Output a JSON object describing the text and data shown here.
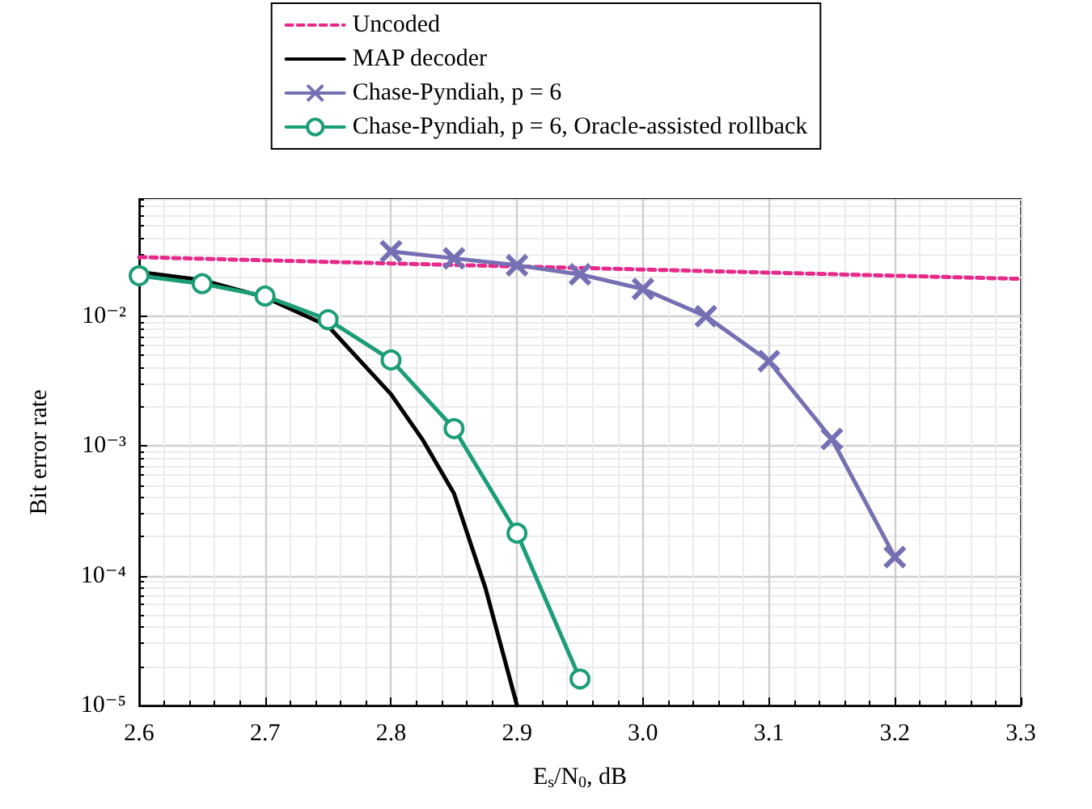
{
  "chart_data": {
    "type": "line",
    "xlabel": "E$_{s}$/N$_{0}$, dB",
    "ylabel": "Bit error rate",
    "log": "y",
    "grid": true,
    "legend": "top",
    "line_style": "solid",
    "xlim": [
      2.6,
      3.3
    ],
    "xticks": [
      {
        "value": 2.6,
        "label": "2.6"
      },
      {
        "value": 2.7,
        "label": "2.7"
      },
      {
        "value": 2.8,
        "label": "2.8"
      },
      {
        "value": 2.9,
        "label": "2.9"
      },
      {
        "value": 3.0,
        "label": "3.0"
      },
      {
        "value": 3.1,
        "label": "3.1"
      },
      {
        "value": 3.2,
        "label": "3.2"
      },
      {
        "value": 3.3,
        "label": "3.3"
      }
    ],
    "ylim": [
      1e-05,
      0.08
    ],
    "yticks": [
      {
        "value": 1e-05,
        "label": "10⁻⁵"
      },
      {
        "value": 0.0001,
        "label": "10⁻⁴"
      },
      {
        "value": 0.001,
        "label": "10⁻³"
      },
      {
        "value": 0.01,
        "label": "10⁻²"
      }
    ],
    "series": [
      {
        "name": "Uncoded",
        "color": "#e7298a",
        "line_style": "dashed",
        "marker": "none",
        "x": [
          2.6,
          2.8,
          3.0,
          3.2,
          3.3
        ],
        "values": [
          0.0285,
          0.0255,
          0.0229,
          0.0205,
          0.0194
        ]
      },
      {
        "name": "MAP decoder",
        "color": "#000000",
        "marker": "none",
        "x": [
          2.6,
          2.65,
          2.7,
          2.75,
          2.8,
          2.825,
          2.85,
          2.875,
          2.9
        ],
        "values": [
          0.0219,
          0.019,
          0.014,
          0.0084,
          0.0025,
          0.00112,
          0.00043,
          8e-05,
          1e-05
        ]
      },
      {
        "name": "Chase-Pyndiah, p = 6",
        "color": "#7570b3",
        "marker": "cross",
        "x": [
          2.8,
          2.85,
          2.9,
          2.95,
          3.0,
          3.05,
          3.1,
          3.15,
          3.2
        ],
        "values": [
          0.0316,
          0.0279,
          0.0247,
          0.021,
          0.0162,
          0.01,
          0.0045,
          0.00113,
          0.000139
        ]
      },
      {
        "name": "Chase-Pyndiah, p = 6, Oracle-assisted rollback",
        "color": "#1b9e77",
        "marker": "circle",
        "x": [
          2.6,
          2.65,
          2.7,
          2.75,
          2.8,
          2.85,
          2.9,
          2.95
        ],
        "values": [
          0.0205,
          0.0178,
          0.0143,
          0.0094,
          0.0046,
          0.00136,
          0.000213,
          1.6e-05
        ]
      }
    ]
  }
}
